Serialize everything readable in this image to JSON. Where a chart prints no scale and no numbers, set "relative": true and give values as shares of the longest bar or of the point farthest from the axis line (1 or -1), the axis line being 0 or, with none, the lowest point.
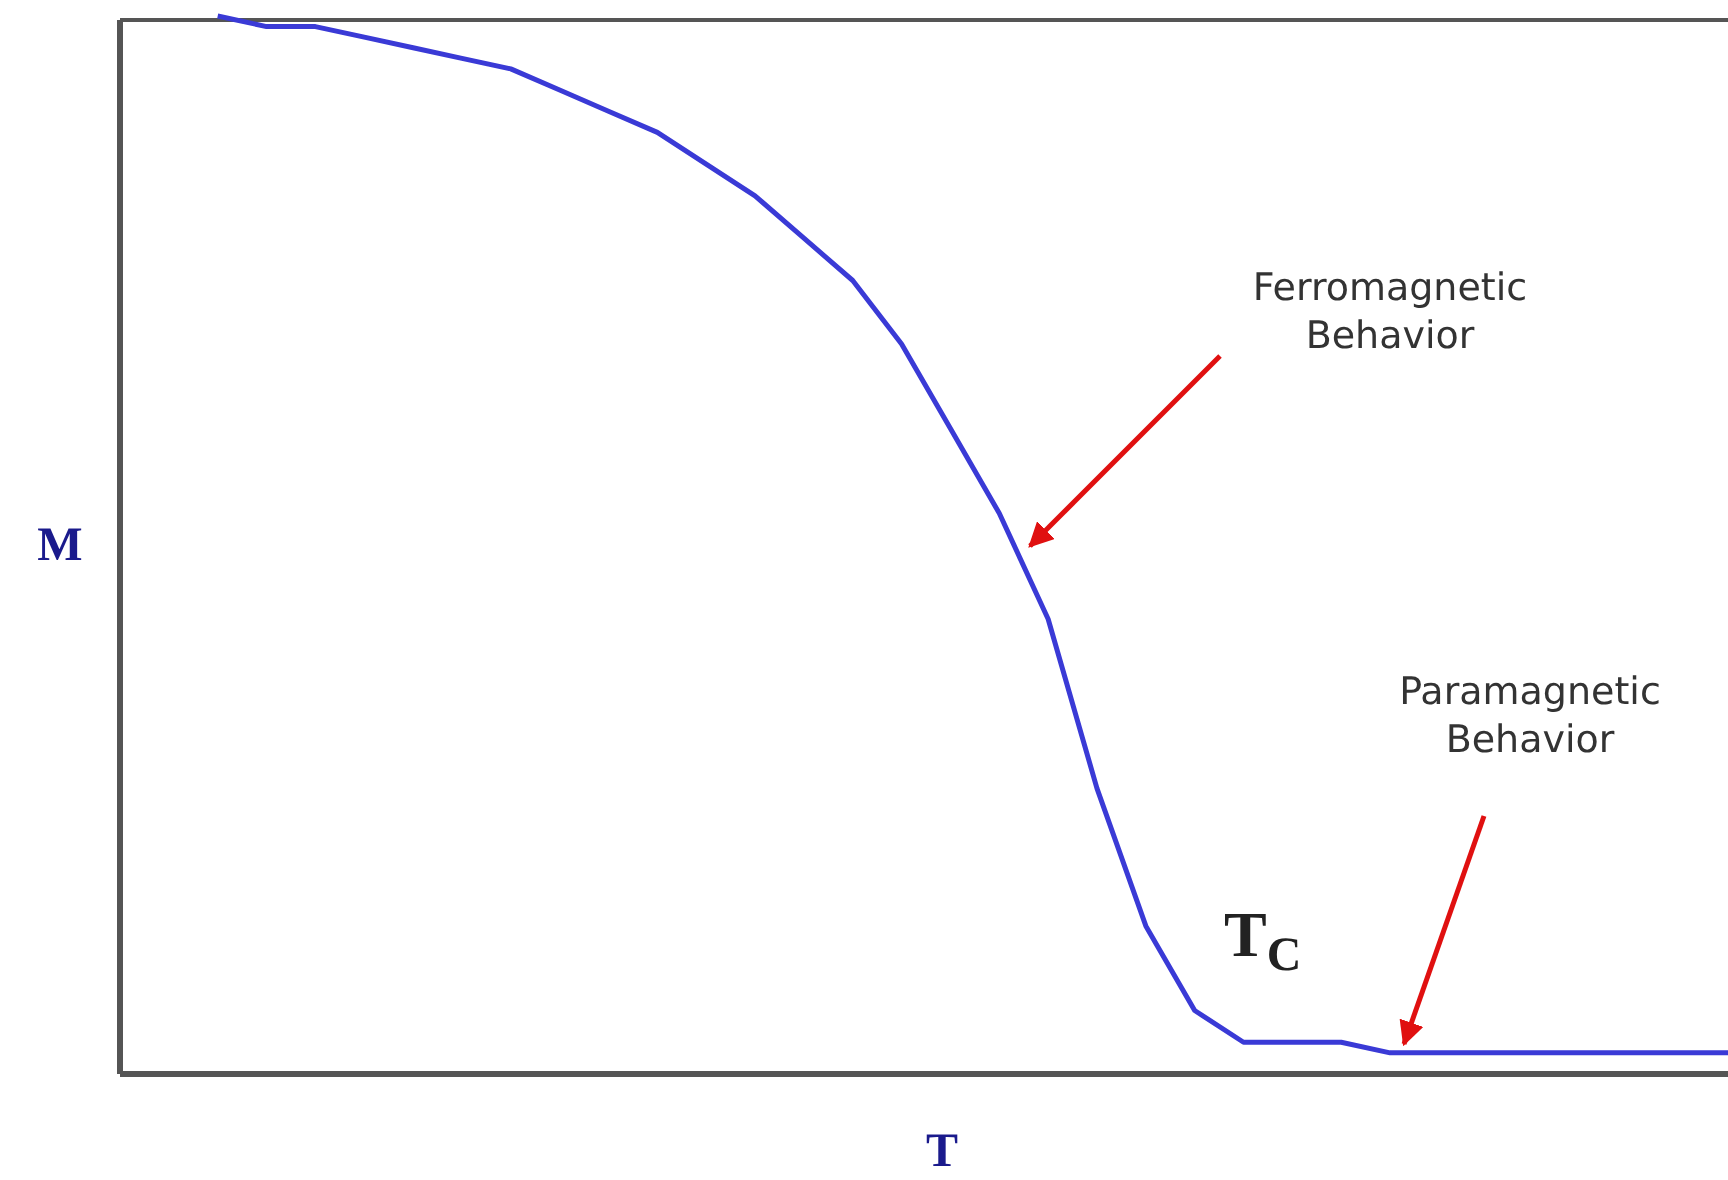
{
  "chart_data": {
    "type": "line",
    "relative": true,
    "xlabel": "T",
    "ylabel": "M",
    "categories": [
      null,
      null,
      null,
      null,
      null,
      null,
      null,
      null,
      null,
      null,
      null,
      null,
      null,
      null,
      null,
      null,
      null,
      null,
      null,
      null,
      null,
      null,
      null,
      null,
      null,
      null,
      null,
      null,
      null,
      null,
      null,
      null,
      null,
      null
    ],
    "series": [
      {
        "color": "#3a3ad6",
        "values": [
          null,
          null,
          1.0,
          0.99,
          0.99,
          0.98,
          0.97,
          0.96,
          0.95,
          0.93,
          0.91,
          0.89,
          0.86,
          0.83,
          0.79,
          0.75,
          0.69,
          0.61,
          0.53,
          0.43,
          0.27,
          0.14,
          0.06,
          0.03,
          0.03,
          0.03,
          0.02,
          0.02,
          0.02,
          0.02,
          0.02,
          0.02,
          0.02,
          0.02
        ]
      }
    ],
    "annotations": [
      "Ferromagnetic\nBehavior",
      "Paramagnetic\nBehavior",
      "T$_{C}$"
    ],
    "grid": false,
    "marker": "none",
    "line_style": "solid"
  }
}
